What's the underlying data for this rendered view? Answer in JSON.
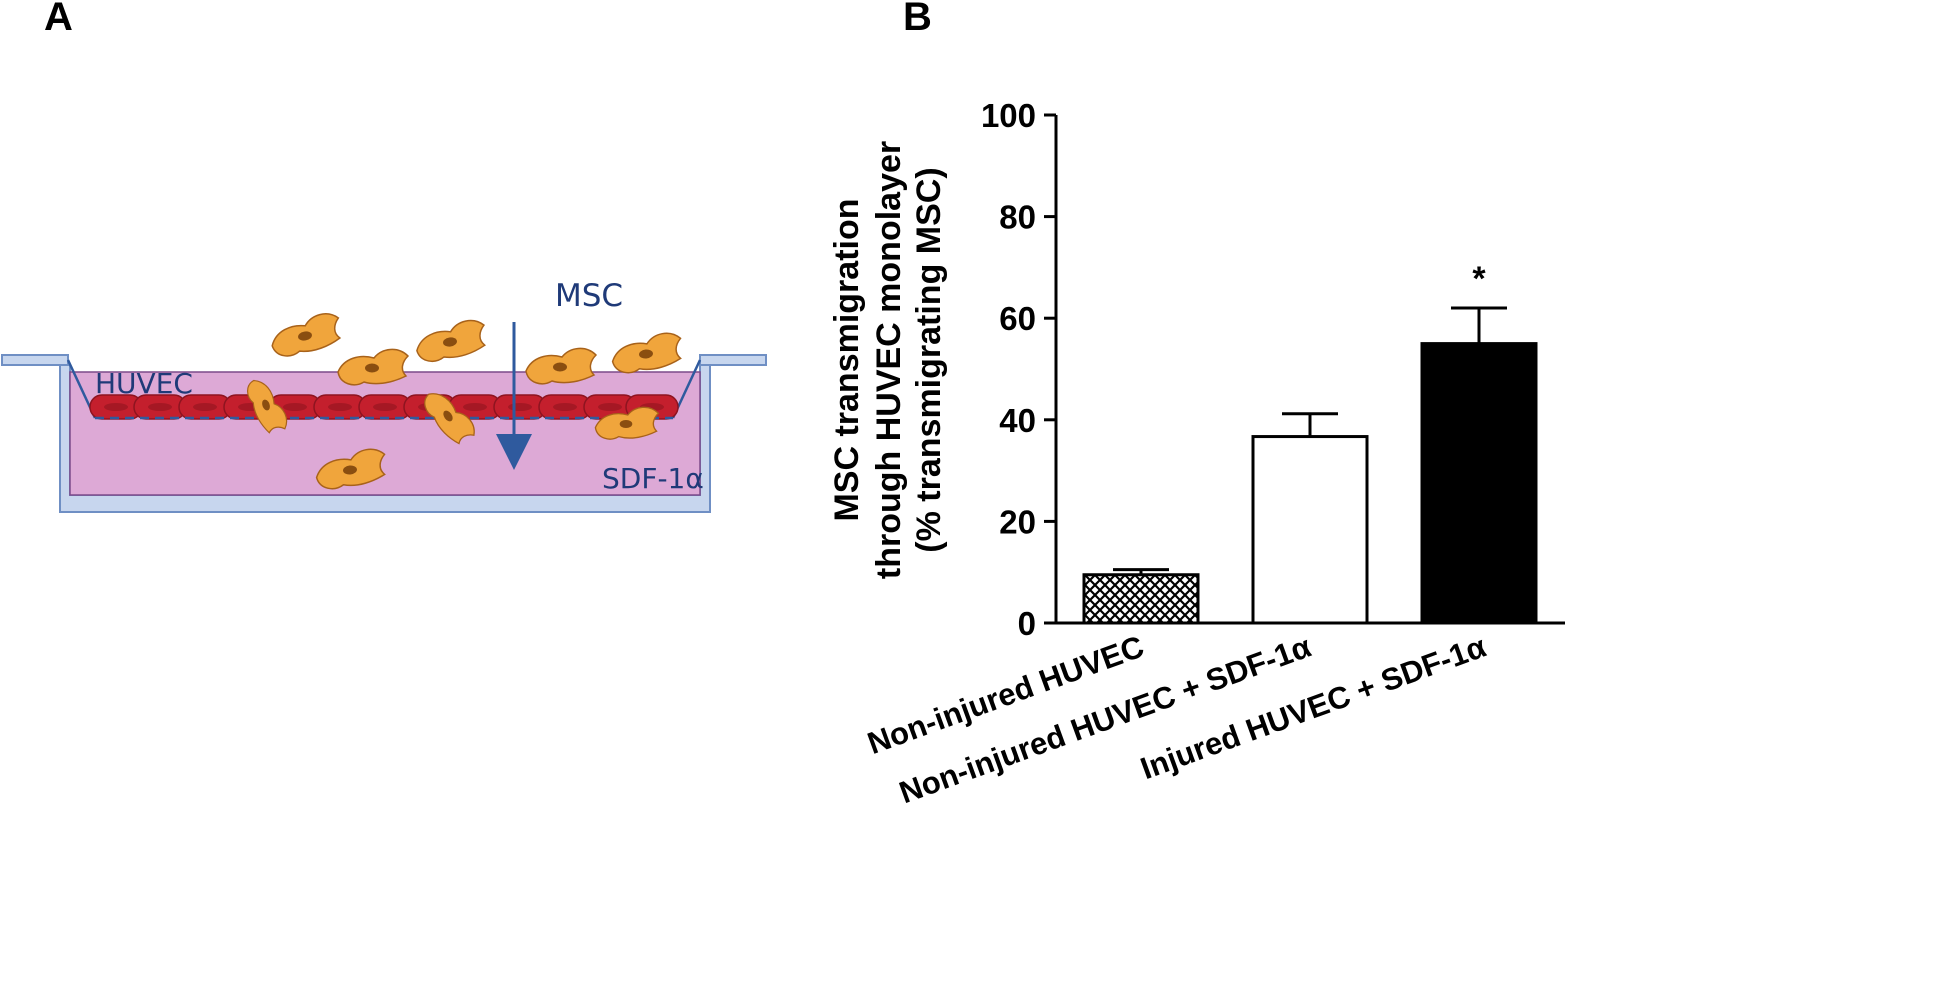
{
  "panels": {
    "a_label": "A",
    "b_label": "B"
  },
  "diagram": {
    "msc_label": "MSC",
    "huvec_label": "HUVEC",
    "sdf_label": "SDF-1α",
    "colors": {
      "well_fill": "#c7d6ee",
      "well_stroke": "#6f8fc4",
      "medium": "#dda9d6",
      "endothelial": "#c41f2d",
      "msc": "#f0a53c",
      "arrow": "#2f5a9e"
    }
  },
  "chart_data": {
    "type": "bar",
    "categories": [
      "Non-injured HUVEC",
      "Non-injured HUVEC + SDF-1α",
      "Injured HUVEC + SDF-1α"
    ],
    "values": [
      9.5,
      36.7,
      55
    ],
    "errors": [
      1,
      4.5,
      7
    ],
    "ylim": [
      0,
      100
    ],
    "yticks": [
      0,
      20,
      40,
      60,
      80,
      100
    ],
    "ylabel_lines": [
      "MSC transmigration",
      "through HUVEC monolayer",
      "(% transmigrating MSC)"
    ],
    "annotations": [
      {
        "category": "Injured HUVEC + SDF-1α",
        "text": "*"
      }
    ],
    "bar_fills": [
      "crosshatch",
      "white",
      "black"
    ]
  }
}
